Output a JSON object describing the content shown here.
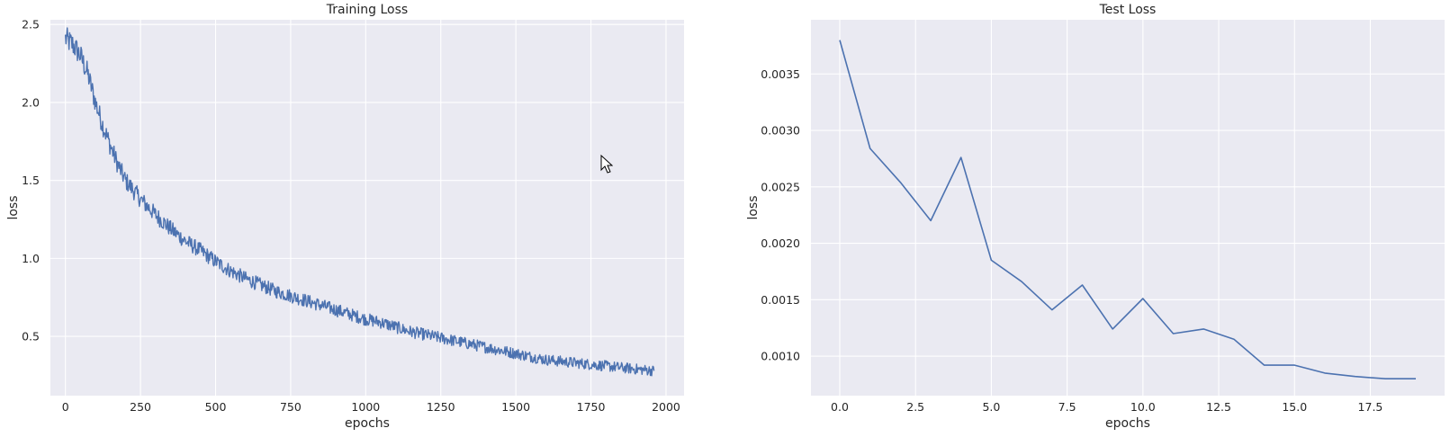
{
  "colors": {
    "background": "#eaeaf2",
    "grid": "#ffffff",
    "line": "#4c72b0",
    "text": "#262626"
  },
  "chart_data": [
    {
      "type": "line",
      "title": "Training Loss",
      "xlabel": "epochs",
      "ylabel": "loss",
      "xlim": [
        -50,
        2060
      ],
      "ylim": [
        0.12,
        2.53
      ],
      "xticks": [
        0,
        250,
        500,
        750,
        1000,
        1250,
        1500,
        1750,
        2000
      ],
      "xtick_labels": [
        "0",
        "250",
        "500",
        "750",
        "1000",
        "1250",
        "1500",
        "1750",
        "2000"
      ],
      "yticks": [
        0.5,
        1.0,
        1.5,
        2.0,
        2.5
      ],
      "ytick_labels": [
        "0.5",
        "1.0",
        "1.5",
        "2.0",
        "2.5"
      ],
      "grid": true,
      "series": [
        {
          "x": [
            0,
            25,
            50,
            75,
            100,
            125,
            150,
            175,
            200,
            250,
            300,
            350,
            400,
            450,
            500,
            550,
            600,
            650,
            700,
            750,
            800,
            850,
            900,
            950,
            1000,
            1050,
            1100,
            1150,
            1200,
            1250,
            1300,
            1350,
            1400,
            1450,
            1500,
            1550,
            1600,
            1650,
            1700,
            1750,
            1800,
            1850,
            1900,
            1960
          ],
          "y": [
            2.41,
            2.37,
            2.3,
            2.18,
            2.0,
            1.85,
            1.72,
            1.6,
            1.5,
            1.38,
            1.28,
            1.19,
            1.11,
            1.05,
            0.98,
            0.92,
            0.87,
            0.83,
            0.79,
            0.76,
            0.73,
            0.7,
            0.67,
            0.64,
            0.61,
            0.59,
            0.56,
            0.53,
            0.51,
            0.49,
            0.47,
            0.45,
            0.43,
            0.41,
            0.39,
            0.37,
            0.35,
            0.34,
            0.33,
            0.32,
            0.31,
            0.3,
            0.29,
            0.28
          ]
        }
      ]
    },
    {
      "type": "line",
      "title": "Test Loss",
      "xlabel": "epochs",
      "ylabel": "loss",
      "xlim": [
        -0.95,
        19.95
      ],
      "ylim": [
        0.00065,
        0.00398
      ],
      "xticks": [
        0.0,
        2.5,
        5.0,
        7.5,
        10.0,
        12.5,
        15.0,
        17.5
      ],
      "xtick_labels": [
        "0.0",
        "2.5",
        "5.0",
        "7.5",
        "10.0",
        "12.5",
        "15.0",
        "17.5"
      ],
      "yticks": [
        0.001,
        0.0015,
        0.002,
        0.0025,
        0.003,
        0.0035
      ],
      "ytick_labels": [
        "0.0010",
        "0.0015",
        "0.0020",
        "0.0025",
        "0.0030",
        "0.0035"
      ],
      "grid": true,
      "series": [
        {
          "x": [
            0,
            1,
            2,
            3,
            4,
            5,
            6,
            7,
            8,
            9,
            10,
            11,
            12,
            13,
            14,
            15,
            16,
            17,
            18,
            19
          ],
          "y": [
            0.0038,
            0.00284,
            0.00254,
            0.0022,
            0.00276,
            0.00185,
            0.00166,
            0.00141,
            0.00163,
            0.00124,
            0.00151,
            0.0012,
            0.00124,
            0.00115,
            0.00092,
            0.00092,
            0.00085,
            0.00082,
            0.0008,
            0.0008
          ]
        }
      ]
    }
  ]
}
